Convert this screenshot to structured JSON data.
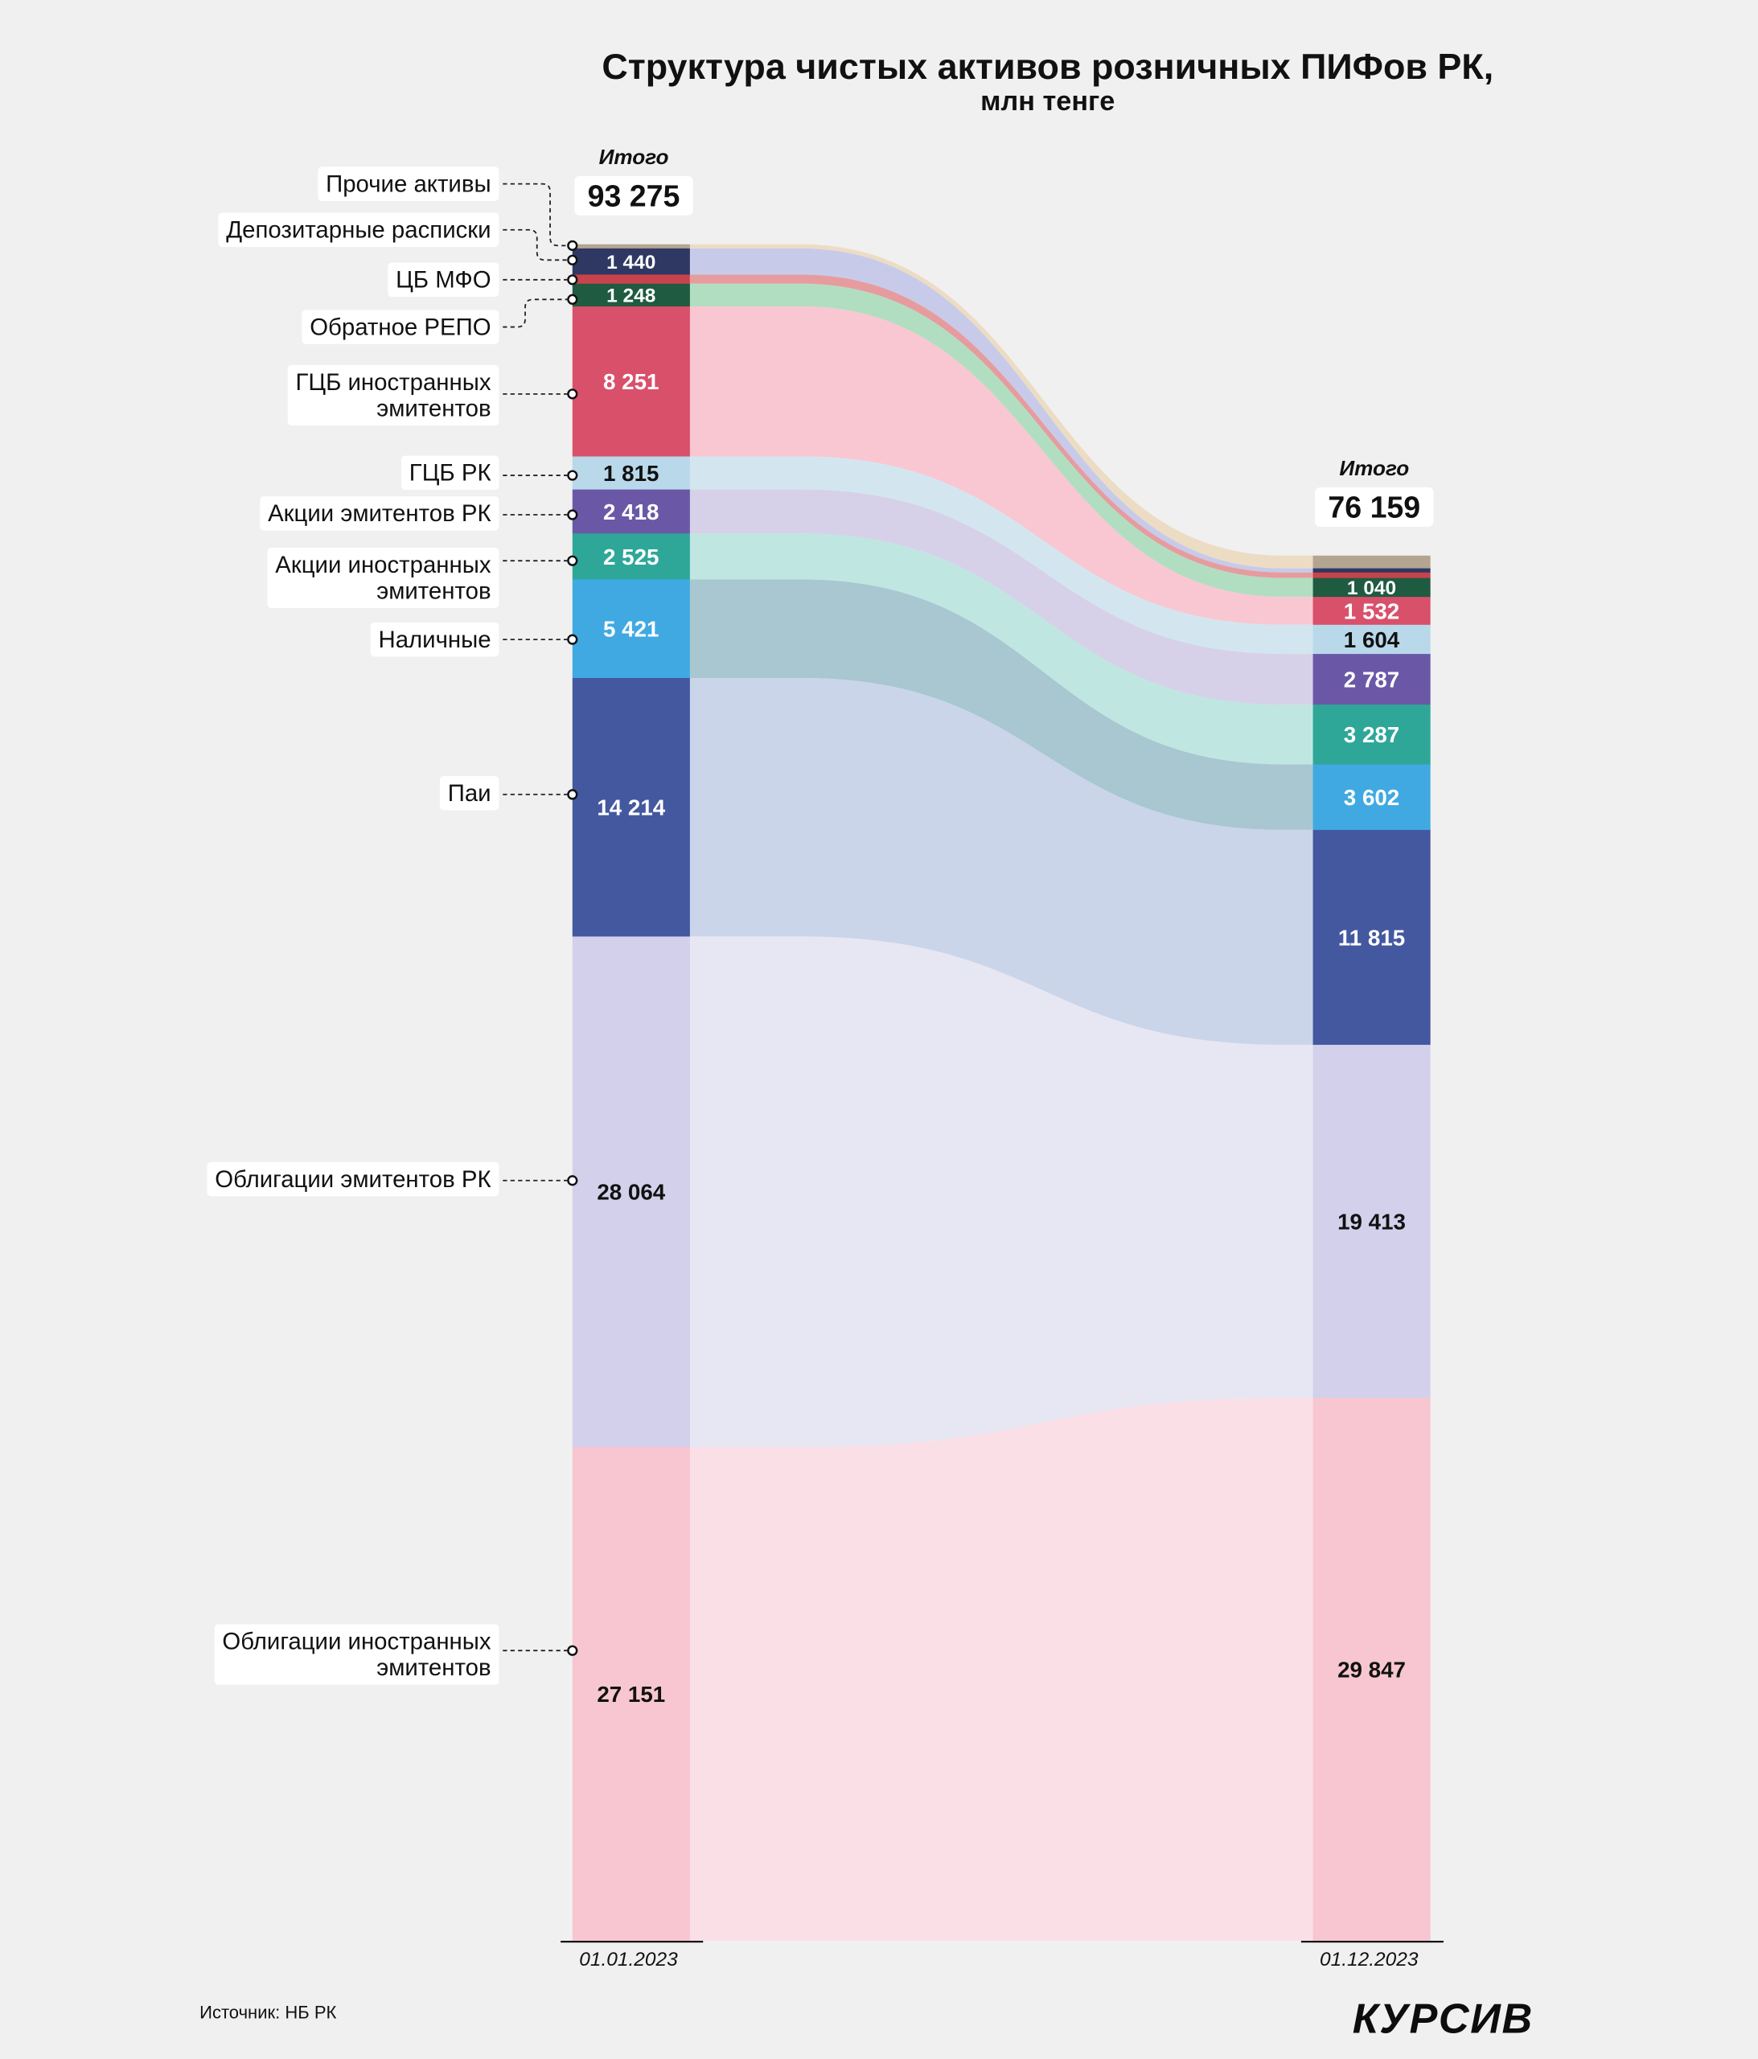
{
  "chart_data": {
    "type": "bar",
    "stacked": true,
    "title": "Структура чистых активов розничных ПИФов РК,",
    "subtitle": "млн тенге",
    "categories": [
      "01.01.2023",
      "01.12.2023"
    ],
    "total_label": "Итого",
    "total_labels": [
      "93 275",
      "76 159"
    ],
    "legend_position": "left",
    "series": [
      {
        "name_lines": [
          "Прочие активы"
        ],
        "values": [
          228,
          700
        ],
        "value_labels": [
          null,
          null
        ],
        "color": "#b4a592",
        "flow_color": "#eddcc4",
        "label_color": "#ffffff"
      },
      {
        "name_lines": [
          "Депозитарные расписки"
        ],
        "values": [
          1440,
          230
        ],
        "value_labels": [
          "1 440",
          null
        ],
        "color": "#2f3862",
        "flow_color": "#c7cbe9",
        "label_color": "#ffffff"
      },
      {
        "name_lines": [
          "ЦБ МФО"
        ],
        "values": [
          500,
          302
        ],
        "value_labels": [
          null,
          null
        ],
        "color": "#c8434c",
        "flow_color": "#e69c9f",
        "label_color": "#ffffff"
      },
      {
        "name_lines": [
          "Обратное РЕПО"
        ],
        "values": [
          1248,
          1040
        ],
        "value_labels": [
          "1 248",
          "1 040"
        ],
        "color": "#1f5b40",
        "flow_color": "#b1dec1",
        "label_color": "#ffffff"
      },
      {
        "name_lines": [
          "ГЦБ иностранных",
          "эмитентов"
        ],
        "values": [
          8251,
          1532
        ],
        "value_labels": [
          "8 251",
          "1 532"
        ],
        "color": "#d9506b",
        "flow_color": "#f8c7d2",
        "label_color": "#ffffff"
      },
      {
        "name_lines": [
          "ГЦБ РК"
        ],
        "values": [
          1815,
          1604
        ],
        "value_labels": [
          "1 815",
          "1 604"
        ],
        "color": "#b9d8ea",
        "flow_color": "#d3e6f0",
        "label_color": "#111111"
      },
      {
        "name_lines": [
          "Акции эмитентов РК"
        ],
        "values": [
          2418,
          2787
        ],
        "value_labels": [
          "2 418",
          "2 787"
        ],
        "color": "#6a58a7",
        "flow_color": "#d6d1e8",
        "label_color": "#ffffff"
      },
      {
        "name_lines": [
          "Акции иностранных",
          "эмитентов"
        ],
        "values": [
          2525,
          3287
        ],
        "value_labels": [
          "2 525",
          "3 287"
        ],
        "color": "#2ea799",
        "flow_color": "#c0e6e2",
        "label_color": "#ffffff"
      },
      {
        "name_lines": [
          "Наличные"
        ],
        "values": [
          5421,
          3602
        ],
        "value_labels": [
          "5 421",
          "3 602"
        ],
        "color": "#40a9e2",
        "flow_color": "#a8c7d1",
        "label_color": "#ffffff"
      },
      {
        "name_lines": [
          "Паи"
        ],
        "values": [
          14214,
          11815
        ],
        "value_labels": [
          "14 214",
          "11 815"
        ],
        "color": "#43589f",
        "flow_color": "#cad5ea",
        "label_color": "#ffffff"
      },
      {
        "name_lines": [
          "Облигации эмитентов РК"
        ],
        "values": [
          28064,
          19413
        ],
        "value_labels": [
          "28 064",
          "19 413"
        ],
        "color": "#d3d0eb",
        "flow_color": "#e7e7f4",
        "label_color": "#111111"
      },
      {
        "name_lines": [
          "Облигации иностранных",
          "эмитентов"
        ],
        "values": [
          27151,
          29847
        ],
        "value_labels": [
          "27 151",
          "29 847"
        ],
        "color": "#f7c6d0",
        "flow_color": "#fae0e6",
        "label_color": "#111111"
      }
    ]
  },
  "footer": {
    "source": "Источник: НБ РК",
    "logo": "КУРСИВ"
  }
}
